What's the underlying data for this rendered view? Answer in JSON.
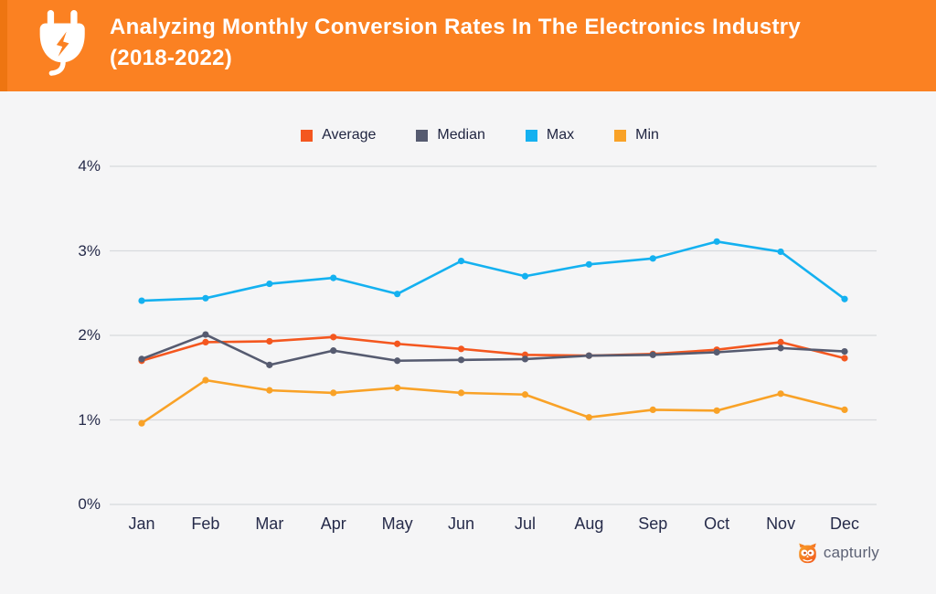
{
  "header": {
    "title_line1": "Analyzing Monthly Conversion Rates In The Electronics Industry",
    "title_line2": "(2018-2022)",
    "background_color": "#fb8122",
    "accent_strip_color": "#ee7511",
    "icon": "power-plug-icon"
  },
  "footer": {
    "brand": "capturly",
    "icon": "owl-logo-icon",
    "text_color": "#5d6275"
  },
  "chart_data": {
    "type": "line",
    "title": "Analyzing Monthly Conversion Rates In The Electronics Industry (2018-2022)",
    "categories": [
      "Jan",
      "Feb",
      "Mar",
      "Apr",
      "May",
      "Jun",
      "Jul",
      "Aug",
      "Sep",
      "Oct",
      "Nov",
      "Dec"
    ],
    "series": [
      {
        "name": "Average",
        "color": "#f4571f",
        "values": [
          1.7,
          1.92,
          1.93,
          1.98,
          1.9,
          1.84,
          1.77,
          1.76,
          1.78,
          1.83,
          1.92,
          1.73
        ]
      },
      {
        "name": "Median",
        "color": "#565b70",
        "values": [
          1.72,
          2.01,
          1.65,
          1.82,
          1.7,
          1.71,
          1.72,
          1.76,
          1.77,
          1.8,
          1.85,
          1.81
        ]
      },
      {
        "name": "Max",
        "color": "#14b1f0",
        "values": [
          2.41,
          2.44,
          2.61,
          2.68,
          2.49,
          2.88,
          2.7,
          2.84,
          2.91,
          3.11,
          2.99,
          2.43
        ]
      },
      {
        "name": "Min",
        "color": "#f9a227",
        "values": [
          0.96,
          1.47,
          1.35,
          1.32,
          1.38,
          1.32,
          1.3,
          1.03,
          1.12,
          1.11,
          1.31,
          1.12
        ]
      }
    ],
    "xlabel": "",
    "ylabel": "",
    "ylim": [
      0,
      4
    ],
    "yticks": [
      "0%",
      "1%",
      "2%",
      "3%",
      "4%"
    ],
    "grid": true,
    "grid_color": "#d8d9dd",
    "axis_text_color": "#262b4a",
    "legend_position": "top"
  }
}
